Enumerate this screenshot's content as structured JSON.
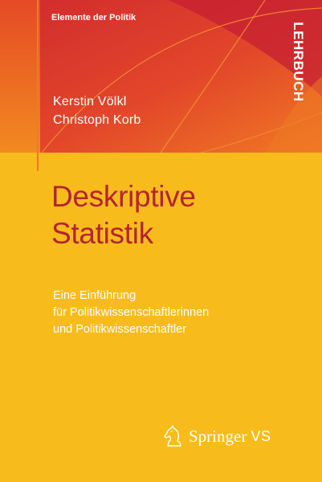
{
  "cover": {
    "series": "Elemente der Politik",
    "badge": "LEHRBUCH",
    "authors": [
      "Kerstin Völkl",
      "Christoph Korb"
    ],
    "title_lines": [
      "Deskriptive",
      "Statistik"
    ],
    "subtitle_lines": [
      "Eine Einführung",
      "für Politikwissenschaftlerinnen",
      "und Politikwissenschaftler"
    ],
    "publisher": {
      "name": "Springer",
      "imprint": "VS",
      "logo_icon": "chess-knight-icon"
    }
  },
  "colors": {
    "background_yellow": "#f7bc1c",
    "title_red": "#b52332",
    "top_red": "#c8202f",
    "top_orange": "#ea5a22",
    "text_white": "#ffffff"
  }
}
